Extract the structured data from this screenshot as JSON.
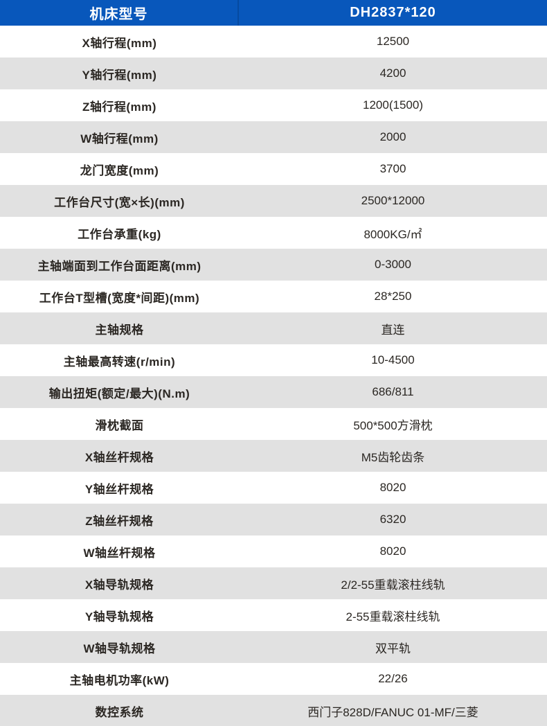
{
  "table": {
    "header": {
      "model_label": "机床型号",
      "model_value": "DH2837*120"
    },
    "rows": [
      {
        "label": "X轴行程(mm)",
        "value": "12500"
      },
      {
        "label": "Y轴行程(mm)",
        "value": "4200"
      },
      {
        "label": "Z轴行程(mm)",
        "value": "1200(1500)"
      },
      {
        "label": "W轴行程(mm)",
        "value": "2000"
      },
      {
        "label": "龙门宽度(mm)",
        "value": "3700"
      },
      {
        "label": "工作台尺寸(宽×长)(mm)",
        "value": "2500*12000"
      },
      {
        "label": "工作台承重(kg)",
        "value": "8000KG/㎡"
      },
      {
        "label": "主轴端面到工作台面距离(mm)",
        "value": "0-3000"
      },
      {
        "label": "工作台T型槽(宽度*间距)(mm)",
        "value": "28*250"
      },
      {
        "label": "主轴规格",
        "value": "直连"
      },
      {
        "label": "主轴最高转速(r/min)",
        "value": "10-4500"
      },
      {
        "label": "输出扭矩(额定/最大)(N.m)",
        "value": "686/811"
      },
      {
        "label": "滑枕截面",
        "value": "500*500方滑枕"
      },
      {
        "label": "X轴丝杆规格",
        "value": "M5齿轮齿条"
      },
      {
        "label": "Y轴丝杆规格",
        "value": "8020"
      },
      {
        "label": "Z轴丝杆规格",
        "value": "6320"
      },
      {
        "label": "W轴丝杆规格",
        "value": "8020"
      },
      {
        "label": "X轴导轨规格",
        "value": "2/2-55重载滚柱线轨"
      },
      {
        "label": "Y轴导轨规格",
        "value": "2-55重载滚柱线轨"
      },
      {
        "label": "W轴导轨规格",
        "value": "双平轨"
      },
      {
        "label": "主轴电机功率(kW)",
        "value": "22/26"
      },
      {
        "label": "数控系统",
        "value": "西门子828D/FANUC 01-MF/三菱"
      }
    ],
    "colors": {
      "header_bg": "#0857bb",
      "header_text": "#ffffff",
      "row_bg": "#ffffff",
      "row_alt_bg": "#e1e1e1",
      "label_text": "#2b2723",
      "value_text": "#2b2723"
    }
  }
}
